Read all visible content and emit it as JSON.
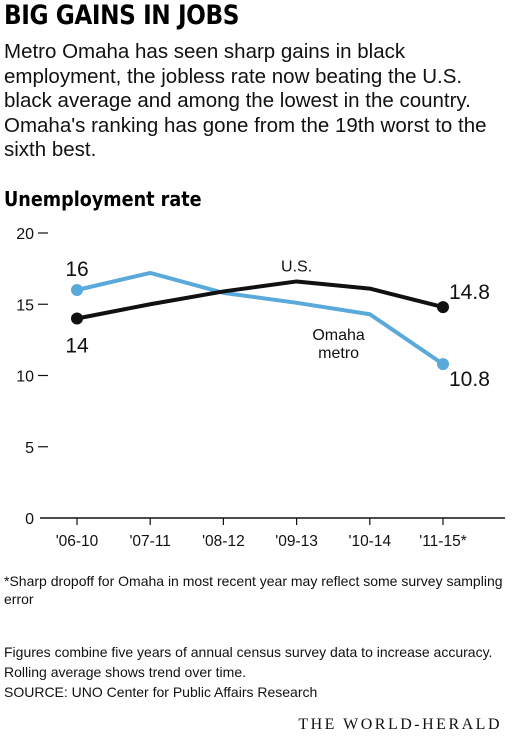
{
  "header": {
    "title": "BIG GAINS IN JOBS",
    "subtitle": "Metro Omaha has seen sharp gains in black employment, the jobless rate now beating the U.S. black average and among the lowest in the country. Omaha's ranking has gone from the 19th worst to the sixth best."
  },
  "chart_data": {
    "type": "line",
    "title": "Unemployment rate",
    "categories": [
      "'06-10",
      "'07-11",
      "'08-12",
      "'09-13",
      "'10-14",
      "'11-15*"
    ],
    "ylim": [
      0,
      20
    ],
    "yticks": [
      0,
      5,
      10,
      15,
      20
    ],
    "grid": false,
    "legend": "none",
    "series": [
      {
        "name": "Omaha metro",
        "color": "#5aa9db",
        "values": [
          16,
          17.2,
          15.8,
          15.1,
          14.3,
          10.8
        ],
        "labels": [
          {
            "index": 0,
            "text": "16"
          },
          {
            "index": 5,
            "text": "10.8"
          }
        ]
      },
      {
        "name": "U.S.",
        "color": "#111111",
        "values": [
          14,
          15,
          15.9,
          16.6,
          16.1,
          14.8
        ],
        "labels": [
          {
            "index": 0,
            "text": "14"
          },
          {
            "index": 5,
            "text": "14.8"
          }
        ]
      }
    ]
  },
  "footnote": "*Sharp dropoff for Omaha in most recent year may reflect some survey sampling error",
  "notes": {
    "line1": "Figures  combine five years of annual census survey data to increase accuracy.",
    "line2": "Rolling average shows trend over time.",
    "source": "SOURCE: UNO Center for Public Affairs Research"
  },
  "branding": "THE WORLD-HERALD"
}
